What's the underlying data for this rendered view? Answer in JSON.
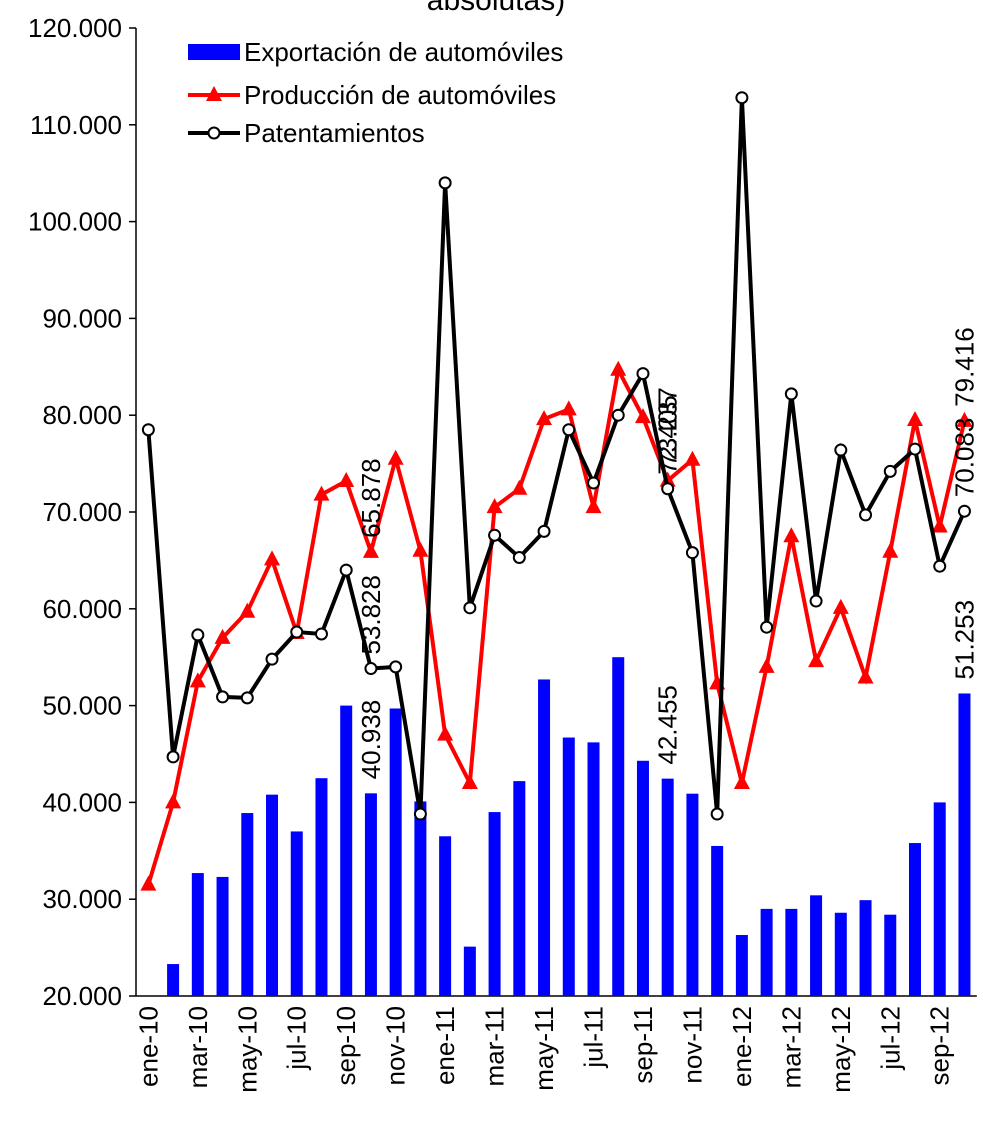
{
  "chart_data": {
    "type": "bar-line",
    "title": "absolutas)",
    "categories": [
      "ene-10",
      null,
      "mar-10",
      null,
      "may-10",
      null,
      "jul-10",
      null,
      "sep-10",
      null,
      "nov-10",
      null,
      "ene-11",
      null,
      "mar-11",
      null,
      "may-11",
      null,
      "jul-11",
      null,
      "sep-11",
      null,
      "nov-11",
      null,
      "ene-12",
      null,
      "mar-12",
      null,
      "may-12",
      null,
      "jul-12",
      null,
      "sep-12",
      null
    ],
    "series": [
      {
        "name": "Exportación de automóviles",
        "kind": "bar",
        "color": "#0000ff",
        "values": [
          null,
          23300,
          32700,
          32300,
          38900,
          40800,
          37000,
          42500,
          50000,
          40938,
          49700,
          40100,
          36500,
          25100,
          39000,
          42200,
          52700,
          46700,
          46200,
          55000,
          44300,
          42455,
          40900,
          35500,
          26300,
          29000,
          29000,
          30400,
          28600,
          29900,
          28400,
          35800,
          40000,
          51253
        ],
        "value_labels": [
          null,
          null,
          null,
          null,
          null,
          null,
          null,
          null,
          null,
          "40.938",
          null,
          null,
          null,
          null,
          null,
          null,
          null,
          null,
          null,
          null,
          null,
          "42.455",
          null,
          null,
          null,
          null,
          null,
          null,
          null,
          null,
          null,
          null,
          null,
          "51.253"
        ]
      },
      {
        "name": "Producción de automóviles",
        "kind": "line",
        "marker": "triangle",
        "color": "#ff0000",
        "values": [
          31500,
          40000,
          52500,
          57000,
          59700,
          65100,
          57500,
          71800,
          73200,
          65878,
          75500,
          66000,
          47000,
          42000,
          70500,
          72400,
          79600,
          80600,
          70500,
          84700,
          79800,
          73237,
          75400,
          52300,
          42000,
          54000,
          67500,
          54600,
          60100,
          52900,
          65900,
          79500,
          68500,
          79416
        ],
        "value_labels": [
          null,
          null,
          null,
          null,
          null,
          null,
          null,
          null,
          null,
          "65.878",
          null,
          null,
          null,
          null,
          null,
          null,
          null,
          null,
          null,
          null,
          null,
          "73.237",
          null,
          null,
          null,
          null,
          null,
          null,
          null,
          null,
          null,
          null,
          null,
          "79.416"
        ]
      },
      {
        "name": "Patentamientos",
        "kind": "line",
        "marker": "circle",
        "color": "#000000",
        "values": [
          78500,
          44700,
          57300,
          50900,
          50800,
          54800,
          57600,
          57400,
          64000,
          53828,
          54000,
          38800,
          104000,
          60100,
          67600,
          65300,
          68000,
          78500,
          73000,
          80000,
          84300,
          72405,
          65800,
          38800,
          112800,
          58100,
          82200,
          60800,
          76400,
          69700,
          74200,
          76500,
          64400,
          70083
        ],
        "value_labels": [
          null,
          null,
          null,
          null,
          null,
          null,
          null,
          null,
          null,
          "53.828",
          null,
          null,
          null,
          null,
          null,
          null,
          null,
          null,
          null,
          null,
          null,
          "72.405",
          null,
          null,
          null,
          null,
          null,
          null,
          null,
          null,
          null,
          null,
          null,
          "70.083"
        ]
      }
    ],
    "ylim": [
      20000,
      120000
    ],
    "yticks": [
      {
        "value": 20000,
        "label": "20.000"
      },
      {
        "value": 30000,
        "label": "30.000"
      },
      {
        "value": 40000,
        "label": "40.000"
      },
      {
        "value": 50000,
        "label": "50.000"
      },
      {
        "value": 60000,
        "label": "60.000"
      },
      {
        "value": 70000,
        "label": "70.000"
      },
      {
        "value": 80000,
        "label": "80.000"
      },
      {
        "value": 90000,
        "label": "90.000"
      },
      {
        "value": 100000,
        "label": "100.000"
      },
      {
        "value": 110000,
        "label": "110.000"
      },
      {
        "value": 120000,
        "label": "120.000"
      }
    ],
    "grid": false,
    "legend": "top-left"
  }
}
